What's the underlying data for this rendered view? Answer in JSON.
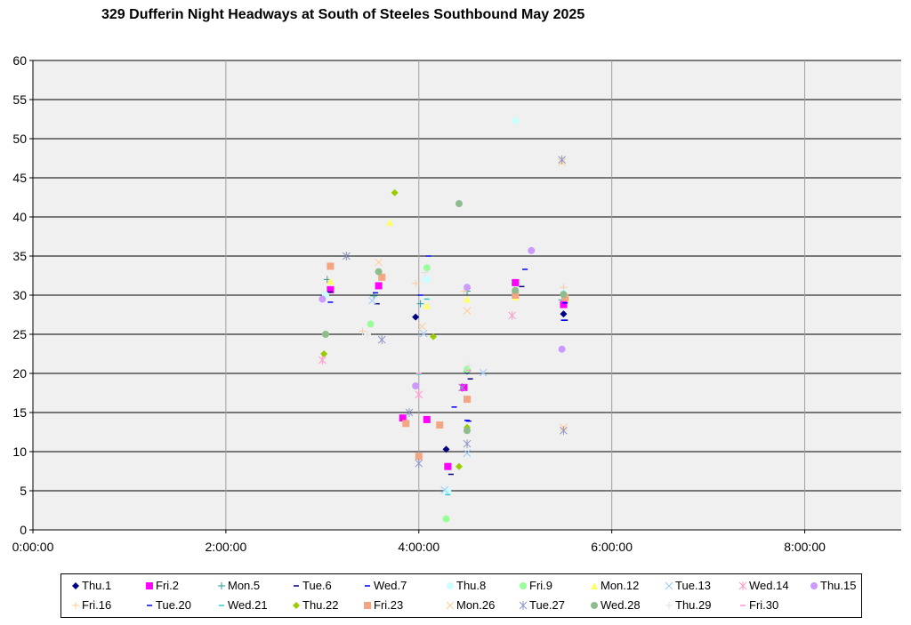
{
  "chart_data": {
    "type": "scatter",
    "title": "329 Dufferin Night Headways at South of Steeles Southbound May 2025",
    "xlabel": "",
    "ylabel": "",
    "x_unit": "time of day (h:mm:ss)",
    "xlim": [
      "0:00:00",
      "9:00:00"
    ],
    "ylim": [
      0,
      60
    ],
    "x_ticks": [
      "0:00:00",
      "2:00:00",
      "4:00:00",
      "6:00:00",
      "8:00:00"
    ],
    "y_ticks": [
      0,
      5,
      10,
      15,
      20,
      25,
      30,
      35,
      40,
      45,
      50,
      55,
      60
    ],
    "grid": true,
    "legend_position": "bottom",
    "series": [
      {
        "name": "Thu.1",
        "marker": "diamond",
        "color": "#000080",
        "points": [
          [
            "3:58:00",
            27.2
          ],
          [
            "4:17:00",
            10.3
          ],
          [
            "4:30:00",
            20.3
          ],
          [
            "5:30:00",
            27.6
          ]
        ]
      },
      {
        "name": "Fri.2",
        "marker": "square",
        "color": "#ff00ff",
        "points": [
          [
            "3:05:00",
            30.7
          ],
          [
            "3:35:00",
            31.2
          ],
          [
            "3:50:00",
            14.3
          ],
          [
            "4:05:00",
            14.1
          ],
          [
            "4:18:00",
            8.1
          ],
          [
            "4:28:00",
            18.2
          ],
          [
            "5:00:00",
            31.6
          ],
          [
            "5:30:00",
            28.8
          ]
        ]
      },
      {
        "name": "Mon.5",
        "marker": "plus",
        "color": "#339999",
        "points": [
          [
            "3:03:00",
            32.0
          ],
          [
            "3:32:00",
            29.9
          ],
          [
            "4:01:00",
            28.9
          ],
          [
            "4:30:00",
            30.5
          ],
          [
            "5:00:00",
            30.2
          ],
          [
            "5:29:00",
            29.4
          ]
        ]
      },
      {
        "name": "Tue.6",
        "marker": "dash",
        "color": "#000080",
        "points": [
          [
            "3:05:00",
            30.4
          ],
          [
            "3:34:00",
            28.9
          ],
          [
            "4:20:00",
            7.1
          ],
          [
            "4:32:00",
            19.3
          ],
          [
            "5:04:00",
            31.1
          ],
          [
            "5:31:00",
            26.8
          ]
        ]
      },
      {
        "name": "Wed.7",
        "marker": "dash",
        "color": "#0000ff",
        "points": [
          [
            "3:33:00",
            30.3
          ],
          [
            "4:06:00",
            35.0
          ],
          [
            "4:22:00",
            15.7
          ],
          [
            "4:30:00",
            14.0
          ],
          [
            "5:06:00",
            33.3
          ],
          [
            "5:31:00",
            29.0
          ]
        ]
      },
      {
        "name": "Thu.8",
        "marker": "circle",
        "color": "#ccffff",
        "points": [
          [
            "3:02:00",
            30.0
          ],
          [
            "4:05:00",
            32.0
          ],
          [
            "4:18:00",
            4.9
          ],
          [
            "5:00:00",
            52.3
          ],
          [
            "5:30:00",
            30.3
          ]
        ]
      },
      {
        "name": "Fri.9",
        "marker": "circle",
        "color": "#99ff99",
        "points": [
          [
            "3:30:00",
            26.3
          ],
          [
            "4:05:00",
            33.5
          ],
          [
            "4:17:00",
            1.4
          ],
          [
            "4:30:00",
            20.5
          ],
          [
            "5:00:00",
            30.5
          ]
        ]
      },
      {
        "name": "Mon.12",
        "marker": "triangle",
        "color": "#ffff66",
        "points": [
          [
            "3:05:00",
            31.8
          ],
          [
            "3:42:00",
            39.3
          ],
          [
            "4:05:00",
            28.7
          ],
          [
            "4:30:00",
            29.5
          ],
          [
            "5:00:00",
            29.8
          ],
          [
            "5:32:00",
            29.7
          ]
        ]
      },
      {
        "name": "Tue.13",
        "marker": "x",
        "color": "#99ccff",
        "points": [
          [
            "3:31:00",
            29.3
          ],
          [
            "4:03:00",
            25.1
          ],
          [
            "4:16:00",
            5.1
          ],
          [
            "4:30:00",
            9.8
          ],
          [
            "4:40:00",
            20.1
          ],
          [
            "5:00:00",
            30.1
          ]
        ]
      },
      {
        "name": "Wed.14",
        "marker": "star",
        "color": "#ff99cc",
        "points": [
          [
            "3:00:00",
            21.7
          ],
          [
            "4:00:00",
            17.3
          ],
          [
            "4:58:00",
            27.4
          ]
        ]
      },
      {
        "name": "Thu.15",
        "marker": "circle",
        "color": "#cc99ff",
        "points": [
          [
            "3:00:00",
            29.5
          ],
          [
            "3:58:00",
            18.4
          ],
          [
            "4:30:00",
            31.0
          ],
          [
            "5:10:00",
            35.7
          ],
          [
            "5:29:00",
            23.1
          ]
        ]
      },
      {
        "name": "Fri.16",
        "marker": "plus",
        "color": "#ffcc99",
        "points": [
          [
            "3:25:00",
            25.4
          ],
          [
            "3:58:00",
            31.5
          ],
          [
            "4:28:00",
            30.5
          ],
          [
            "5:30:00",
            31.0
          ]
        ]
      },
      {
        "name": "Tue.20",
        "marker": "dash",
        "color": "#0000ff",
        "points": [
          [
            "3:05:00",
            29.1
          ],
          [
            "4:01:00",
            30.0
          ],
          [
            "4:31:00",
            13.9
          ],
          [
            "5:30:00",
            26.8
          ]
        ]
      },
      {
        "name": "Wed.21",
        "marker": "dash",
        "color": "#33cccc",
        "points": [
          [
            "4:00:00",
            19.9
          ],
          [
            "4:05:00",
            29.5
          ],
          [
            "4:18:00",
            4.5
          ]
        ]
      },
      {
        "name": "Thu.22",
        "marker": "diamond",
        "color": "#99cc00",
        "points": [
          [
            "3:01:00",
            22.5
          ],
          [
            "3:45:00",
            43.1
          ],
          [
            "4:09:00",
            24.7
          ],
          [
            "4:25:00",
            8.1
          ],
          [
            "4:30:00",
            13.1
          ]
        ]
      },
      {
        "name": "Fri.23",
        "marker": "square",
        "color": "#f4a582",
        "points": [
          [
            "3:05:00",
            33.7
          ],
          [
            "3:37:00",
            32.3
          ],
          [
            "3:52:00",
            13.6
          ],
          [
            "4:00:00",
            9.4
          ],
          [
            "4:13:00",
            13.4
          ],
          [
            "4:30:00",
            16.7
          ],
          [
            "5:00:00",
            30.0
          ],
          [
            "5:31:00",
            29.7
          ]
        ]
      },
      {
        "name": "Mon.26",
        "marker": "x",
        "color": "#ffcc99",
        "points": [
          [
            "3:35:00",
            34.2
          ],
          [
            "4:02:00",
            26.0
          ],
          [
            "4:30:00",
            28.0
          ],
          [
            "5:29:00",
            47.0
          ],
          [
            "5:30:00",
            13.1
          ]
        ]
      },
      {
        "name": "Tue.27",
        "marker": "star",
        "color": "#8c96c6",
        "points": [
          [
            "3:15:00",
            35.0
          ],
          [
            "3:37:00",
            24.3
          ],
          [
            "3:54:00",
            15.0
          ],
          [
            "4:00:00",
            8.5
          ],
          [
            "4:27:00",
            18.2
          ],
          [
            "4:30:00",
            11.0
          ],
          [
            "5:29:00",
            47.3
          ],
          [
            "5:30:00",
            12.7
          ]
        ]
      },
      {
        "name": "Wed.28",
        "marker": "circle",
        "color": "#8fbc8f",
        "points": [
          [
            "3:02:00",
            25.0
          ],
          [
            "3:35:00",
            33.0
          ],
          [
            "4:25:00",
            41.7
          ],
          [
            "4:30:00",
            12.7
          ],
          [
            "5:00:00",
            30.6
          ],
          [
            "5:30:00",
            30.1
          ]
        ]
      },
      {
        "name": "Thu.29",
        "marker": "plus",
        "color": "#e0e0e0",
        "points": [
          [
            "3:28:00",
            25.0
          ],
          [
            "4:04:00",
            32.9
          ],
          [
            "4:31:00",
            21.0
          ]
        ]
      },
      {
        "name": "Fri.30",
        "marker": "dash",
        "color": "#ff99cc",
        "points": [
          [
            "4:00:00",
            20.0
          ],
          [
            "4:31:00",
            20.4
          ]
        ]
      }
    ]
  }
}
